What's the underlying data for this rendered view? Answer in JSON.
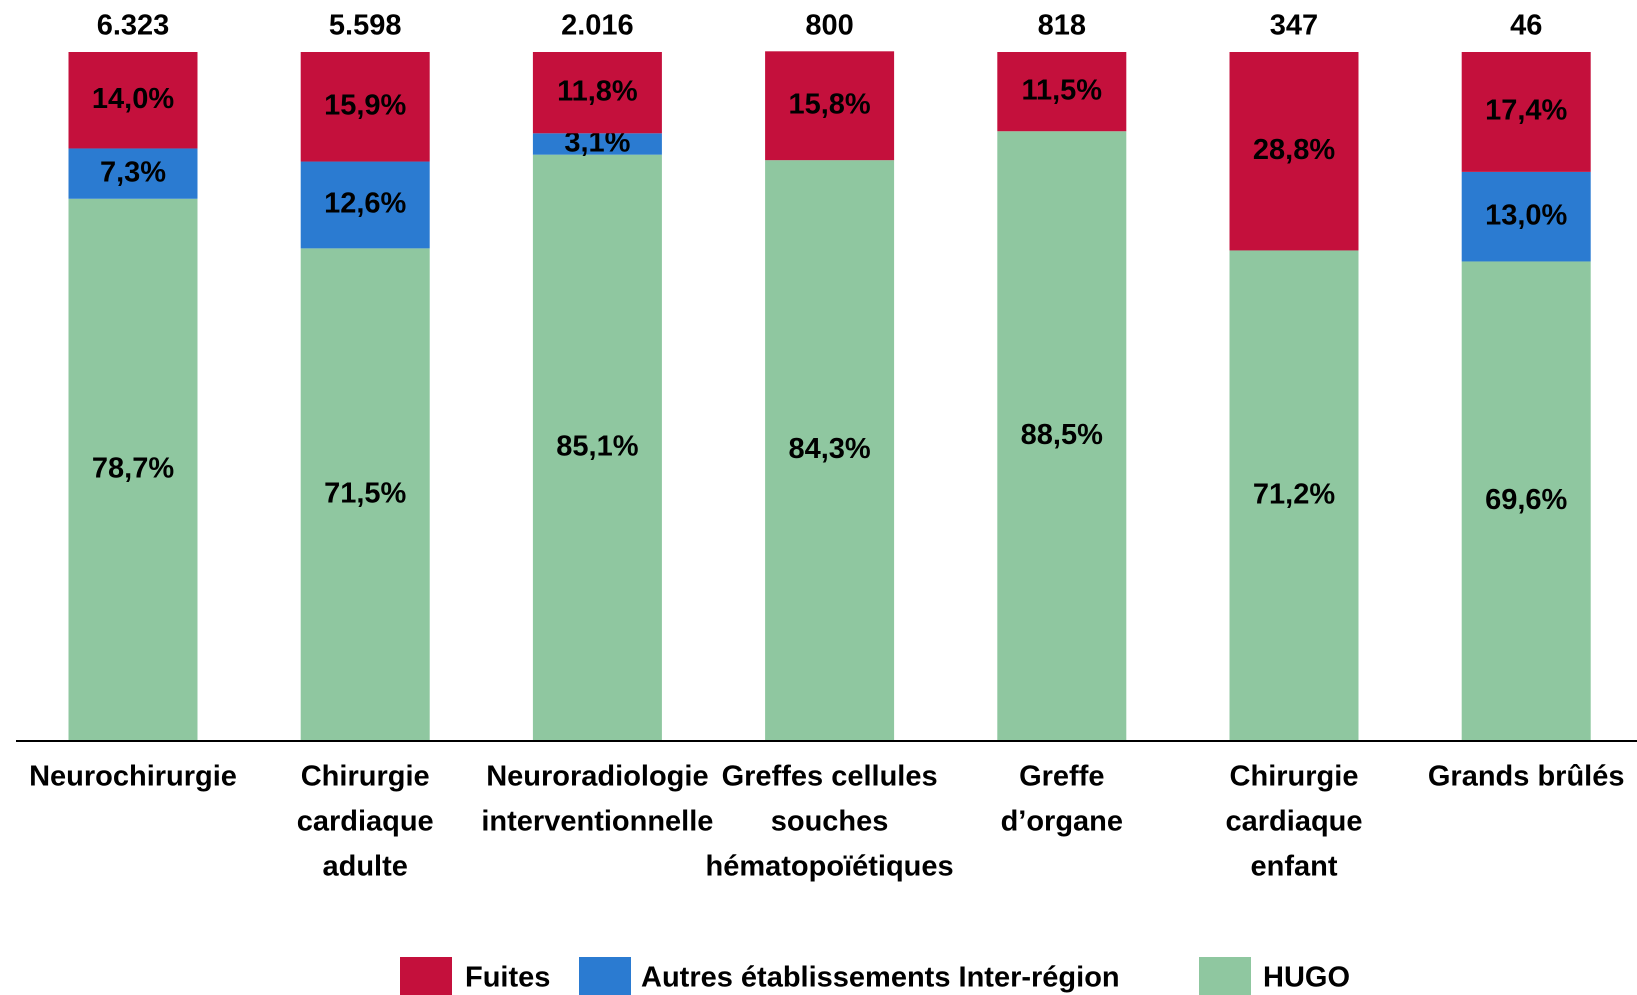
{
  "chart_data": {
    "type": "stacked_bar_100",
    "categories": [
      [
        "Neurochirurgie"
      ],
      [
        "Chirurgie",
        "cardiaque",
        "adulte"
      ],
      [
        "Neuroradiologie",
        "interventionnelle"
      ],
      [
        "Greffes cellules",
        "souches",
        "hématopoïétiques"
      ],
      [
        "Greffe",
        "d’organe"
      ],
      [
        "Chirurgie",
        "cardiaque",
        "enfant"
      ],
      [
        "Grands brûlés"
      ]
    ],
    "totals": {
      "values": [
        6323,
        5598,
        2016,
        800,
        818,
        347,
        46
      ],
      "value_labels": [
        "6.323",
        "5.598",
        "2.016",
        "800",
        "818",
        "347",
        "46"
      ]
    },
    "series": [
      {
        "name": "HUGO",
        "color": "#8fc7a0",
        "label_color": "#000000",
        "values": [
          78.7,
          71.5,
          85.1,
          84.3,
          88.5,
          71.2,
          69.6
        ],
        "value_labels": [
          "78,7%",
          "71,5%",
          "85,1%",
          "84,3%",
          "88,5%",
          "71,2%",
          "69,6%"
        ]
      },
      {
        "name": "Autres établissements Inter-région",
        "color": "#2b7bd1",
        "label_color": "#ffffff",
        "values": [
          7.3,
          12.6,
          3.1,
          null,
          null,
          null,
          13.0
        ],
        "value_labels": [
          "7,3%",
          "12,6%",
          "3,1%",
          null,
          null,
          null,
          "13,0%"
        ]
      },
      {
        "name": "Fuites",
        "color": "#c4103c",
        "label_color": "#ffffff",
        "values": [
          14.0,
          15.9,
          11.8,
          15.8,
          11.5,
          28.8,
          17.4
        ],
        "value_labels": [
          "14,0%",
          "15,9%",
          "11,8%",
          "15,8%",
          "11,5%",
          "28,8%",
          "17,4%"
        ]
      }
    ],
    "legend_order": [
      2,
      1,
      0
    ],
    "ylim": [
      0,
      100
    ]
  }
}
